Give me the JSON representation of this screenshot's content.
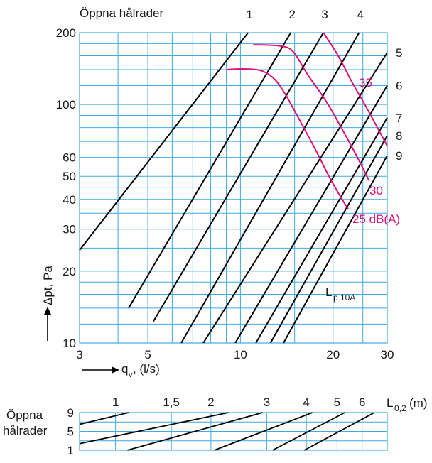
{
  "chart_data": [
    {
      "type": "line",
      "title": "",
      "xlabel": "qv, (l/s)",
      "xlabel_main": "q",
      "xlabel_sub": "v",
      "xlabel_rest": ", (l/s)",
      "ylabel": "Δpt, Pa",
      "x_scale": "log",
      "y_scale": "log",
      "xlim": [
        3,
        30
      ],
      "ylim": [
        10,
        200
      ],
      "grid": true,
      "x_ticks": [
        3,
        5,
        10,
        20,
        30
      ],
      "y_ticks": [
        10,
        20,
        30,
        40,
        50,
        60,
        100,
        200
      ],
      "x_gridlines": [
        3,
        4,
        5,
        6,
        7,
        8,
        9,
        10,
        15,
        20,
        25,
        30
      ],
      "y_gridlines": [
        10,
        12,
        14,
        16,
        18,
        20,
        25,
        30,
        35,
        40,
        45,
        50,
        60,
        70,
        80,
        90,
        100,
        120,
        140,
        160,
        180,
        200
      ],
      "top_label": "Öppna hålrader",
      "series_name_label": "Lp 10A",
      "series_label_main": "L",
      "series_label_sub": "p 10A",
      "series": [
        {
          "name": "1",
          "label_pos": "top",
          "x": [
            3,
            10.59
          ],
          "y": [
            24.5,
            200
          ]
        },
        {
          "name": "2",
          "label_pos": "top",
          "x": [
            4.33,
            14.57
          ],
          "y": [
            14,
            200
          ]
        },
        {
          "name": "3",
          "label_pos": "top",
          "x": [
            5.21,
            18.6
          ],
          "y": [
            12.3,
            200
          ]
        },
        {
          "name": "4",
          "label_pos": "top",
          "x": [
            6.42,
            24.3
          ],
          "y": [
            10,
            200
          ]
        },
        {
          "name": "5",
          "label_pos": "right",
          "x": [
            7.57,
            30
          ],
          "y": [
            10,
            165
          ]
        },
        {
          "name": "6",
          "label_pos": "right",
          "x": [
            9.62,
            30
          ],
          "y": [
            10,
            120
          ]
        },
        {
          "name": "7",
          "label_pos": "right",
          "x": [
            11.22,
            30
          ],
          "y": [
            10,
            88
          ]
        },
        {
          "name": "8",
          "label_pos": "right",
          "x": [
            12.52,
            30
          ],
          "y": [
            10,
            74
          ]
        },
        {
          "name": "9",
          "label_pos": "right",
          "x": [
            13.8,
            30
          ],
          "y": [
            10,
            61
          ]
        }
      ],
      "sound_curves": [
        {
          "label": "25 dB(A)",
          "x": [
            9,
            10.2,
            11.6,
            12.8,
            13.9,
            15.5,
            17.5,
            19.4,
            21.4,
            22.4
          ],
          "y": [
            140,
            141,
            139,
            129,
            112,
            87,
            65,
            50,
            40,
            36.5
          ]
        },
        {
          "label": "30",
          "x": [
            11,
            13.4,
            14.8,
            16.5,
            19,
            21.5,
            24,
            26.2
          ],
          "y": [
            178,
            176,
            167,
            134,
            103,
            78,
            60,
            48
          ]
        },
        {
          "label": "35",
          "x": [
            18.6,
            20.8,
            22.9,
            25.7,
            30
          ],
          "y": [
            200,
            160,
            126,
            97,
            67
          ]
        }
      ]
    },
    {
      "type": "line",
      "title": "",
      "xlabel": "L0,2 (m)",
      "xlabel_main": "L",
      "xlabel_sub": "0,2",
      "xlabel_rest": " (m)",
      "ylabel": "Öppna hålrader",
      "ylabel_lines": [
        "Öppna",
        "hålrader"
      ],
      "x_scale": "log",
      "xlim": [
        0.77,
        7.2
      ],
      "ylim": [
        1,
        9
      ],
      "x_ticks": [
        "1",
        "1,5",
        "2",
        "3",
        "4",
        "5",
        "6"
      ],
      "x_tick_values": [
        1,
        1.5,
        2,
        3,
        4,
        5,
        6
      ],
      "y_ticks": [
        1,
        5,
        9
      ],
      "x_gridlines": [
        0.77,
        1,
        1.5,
        2,
        3,
        4,
        5,
        6,
        7.2
      ],
      "y_gridlines": [
        1,
        3,
        5,
        7,
        9
      ],
      "lines": [
        {
          "x": [
            0.77,
            1.1
          ],
          "y": [
            6.5,
            9
          ]
        },
        {
          "x": [
            0.77,
            2.27
          ],
          "y": [
            2.4,
            9
          ]
        },
        {
          "x": [
            1.09,
            2.91
          ],
          "y": [
            1,
            9
          ]
        },
        {
          "x": [
            2.05,
            4.18
          ],
          "y": [
            1,
            9
          ]
        },
        {
          "x": [
            3.13,
            5.29
          ],
          "y": [
            1,
            9
          ]
        },
        {
          "x": [
            3.94,
            6.56
          ],
          "y": [
            1,
            9
          ]
        }
      ]
    }
  ]
}
